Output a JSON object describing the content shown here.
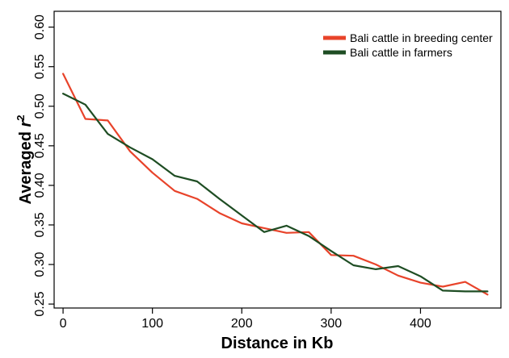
{
  "chart_data": {
    "type": "line",
    "xlabel": "Distance in Kb",
    "ylabel_main": "Averaged ",
    "ylabel_var": "r",
    "ylabel_sup": "2",
    "xlim": [
      -10,
      490
    ],
    "ylim": [
      0.245,
      0.62
    ],
    "xticks": [
      0,
      100,
      200,
      300,
      400
    ],
    "xtick_labels": [
      "0",
      "100",
      "200",
      "300",
      "400"
    ],
    "yticks": [
      0.25,
      0.3,
      0.35,
      0.4,
      0.45,
      0.5,
      0.55,
      0.6
    ],
    "ytick_labels": [
      "0.25",
      "0.30",
      "0.35",
      "0.40",
      "0.45",
      "0.50",
      "0.55",
      "0.60"
    ],
    "grid": false,
    "legend_position": "top-right",
    "series": [
      {
        "name": "Bali cattle in breeding center",
        "color": "#e8432a",
        "x": [
          0,
          25,
          50,
          75,
          100,
          125,
          150,
          175,
          200,
          225,
          250,
          275,
          300,
          325,
          350,
          375,
          400,
          425,
          450,
          475
        ],
        "y": [
          0.541,
          0.484,
          0.482,
          0.443,
          0.416,
          0.393,
          0.383,
          0.365,
          0.352,
          0.346,
          0.34,
          0.341,
          0.312,
          0.311,
          0.3,
          0.286,
          0.277,
          0.272,
          0.278,
          0.262
        ]
      },
      {
        "name": "Bali cattle in farmers",
        "color": "#1e4d23",
        "x": [
          0,
          25,
          50,
          75,
          100,
          125,
          150,
          175,
          200,
          225,
          250,
          275,
          300,
          325,
          350,
          375,
          400,
          425,
          450,
          475
        ],
        "y": [
          0.516,
          0.502,
          0.465,
          0.448,
          0.433,
          0.412,
          0.405,
          0.383,
          0.362,
          0.341,
          0.349,
          0.336,
          0.317,
          0.299,
          0.294,
          0.298,
          0.285,
          0.267,
          0.266,
          0.266
        ]
      }
    ]
  }
}
